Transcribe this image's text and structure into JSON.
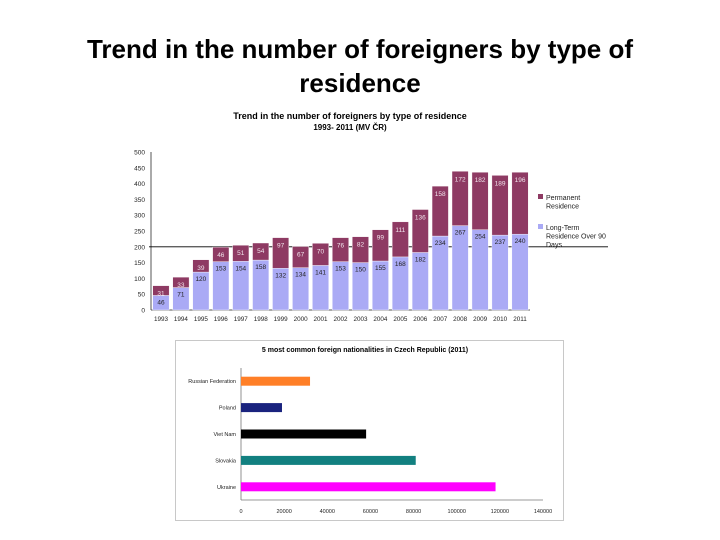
{
  "slide": {
    "title": "Trend in the number of foreigners by type of residence"
  },
  "chart_data": [
    {
      "type": "bar",
      "stacked": true,
      "title": "Trend in the number of foreigners by type of residence",
      "subtitle": "1993- 2011 (MV ČR)",
      "categories": [
        "1993",
        "1994",
        "1995",
        "1996",
        "1997",
        "1998",
        "1999",
        "2000",
        "2001",
        "2002",
        "2003",
        "2004",
        "2005",
        "2006",
        "2007",
        "2008",
        "2009",
        "2010",
        "2011"
      ],
      "series": [
        {
          "name": "Long-Term Residence Over 90 Days",
          "color": "#aaaaf5",
          "values": [
            46,
            71,
            120,
            153,
            154,
            158,
            132,
            134,
            141,
            153,
            150,
            155,
            168,
            182,
            234,
            267,
            254,
            237,
            240
          ]
        },
        {
          "name": "Permanent Residence",
          "color": "#8e3a63",
          "values": [
            31,
            33,
            39,
            46,
            51,
            54,
            97,
            67,
            70,
            76,
            82,
            99,
            111,
            136,
            158,
            172,
            182,
            189,
            196
          ]
        }
      ],
      "y_ticks": [
        "500",
        "450",
        "400",
        "350",
        "300",
        "250",
        "200",
        "150",
        "100",
        "50",
        "0"
      ],
      "ylim": [
        0,
        500
      ],
      "grid": false,
      "legend": "right"
    },
    {
      "type": "bar",
      "orientation": "horizontal",
      "title": "5 most common foreign nationalities in Czech Republic (2011)",
      "categories": [
        "Russian Federation",
        "Poland",
        "Viet Nam",
        "Slovakia",
        "Ukraine"
      ],
      "values": [
        32000,
        19000,
        58000,
        81000,
        118000
      ],
      "colors": [
        "#ff7f27",
        "#1a237e",
        "#000000",
        "#128080",
        "#ff00ff"
      ],
      "x_ticks": [
        "0",
        "20000",
        "40000",
        "60000",
        "80000",
        "100000",
        "120000",
        "140000"
      ],
      "xlim": [
        0,
        140000
      ],
      "grid": false
    }
  ]
}
